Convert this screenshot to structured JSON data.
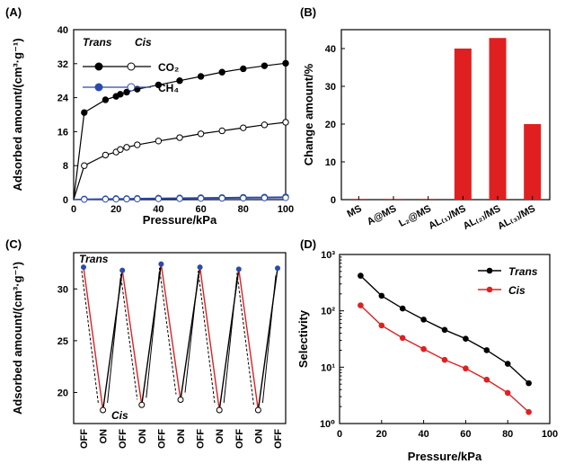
{
  "chart_data": [
    {
      "panel": "(A)",
      "type": "scatter",
      "xlabel": "Pressure/kPa",
      "ylabel": "Adsorbed amount/(cm³·g⁻¹)",
      "xlim": [
        0,
        100
      ],
      "ylim": [
        0,
        40
      ],
      "xticks": [
        0,
        20,
        40,
        60,
        80,
        100
      ],
      "yticks": [
        0,
        8,
        16,
        24,
        32,
        40
      ],
      "legend": {
        "position": "top-left",
        "header_left": "Trans",
        "header_right": "Cis",
        "entries": [
          "CO₂",
          "CH₄"
        ]
      },
      "series": [
        {
          "name": "CO₂ Trans",
          "color": "#000000",
          "marker": "filled",
          "x": [
            0,
            5,
            15,
            20,
            22,
            25,
            30,
            40,
            50,
            60,
            70,
            80,
            90,
            100
          ],
          "y": [
            0,
            20.5,
            23.5,
            24.3,
            24.8,
            25.3,
            26.0,
            27.0,
            28.0,
            29.0,
            30.0,
            30.8,
            31.5,
            32.1
          ]
        },
        {
          "name": "CO₂ Cis",
          "color": "#000000",
          "marker": "open",
          "x": [
            0,
            5,
            15,
            20,
            22,
            25,
            30,
            40,
            50,
            60,
            70,
            80,
            90,
            100
          ],
          "y": [
            0,
            8.0,
            10.5,
            11.2,
            11.8,
            12.3,
            12.9,
            13.8,
            14.6,
            15.5,
            16.2,
            16.9,
            17.6,
            18.2
          ]
        },
        {
          "name": "CH₄ Trans",
          "color": "#2b4ba8",
          "marker": "filled",
          "x": [
            0,
            5,
            15,
            20,
            25,
            30,
            40,
            50,
            60,
            70,
            80,
            90,
            100
          ],
          "y": [
            0,
            0.15,
            0.2,
            0.25,
            0.25,
            0.3,
            0.35,
            0.4,
            0.45,
            0.5,
            0.55,
            0.6,
            0.65
          ]
        },
        {
          "name": "CH₄ Cis",
          "color": "#2b4ba8",
          "marker": "open",
          "x": [
            0,
            5,
            15,
            20,
            25,
            30,
            40,
            50,
            60,
            70,
            80,
            90,
            100
          ],
          "y": [
            0,
            0.05,
            0.1,
            0.12,
            0.14,
            0.16,
            0.2,
            0.24,
            0.28,
            0.32,
            0.36,
            0.4,
            0.44
          ]
        }
      ]
    },
    {
      "panel": "(B)",
      "type": "bar",
      "ylabel": "Change amount/%",
      "ylim": [
        0,
        45
      ],
      "yticks": [
        0,
        10,
        20,
        30,
        40
      ],
      "categories": [
        "MS",
        "A@MS",
        "L₂@MS",
        "AL₍₁₎/MS",
        "AL₍₂₎/MS",
        "AL₍₃₎/MS"
      ],
      "values": [
        0.2,
        0.2,
        0.2,
        40,
        42.8,
        20
      ],
      "color": "#e02020"
    },
    {
      "panel": "(C)",
      "type": "line",
      "ylabel": "Adsorbed amount/(cm³·g⁻¹)",
      "ylim": [
        17,
        33.5
      ],
      "yticks": [
        20,
        25,
        30
      ],
      "categories": [
        "OFF",
        "ON",
        "OFF",
        "ON",
        "OFF",
        "ON",
        "OFF",
        "ON",
        "OFF",
        "ON",
        "OFF"
      ],
      "annotations": [
        "Trans",
        "Cis"
      ],
      "trans_values": [
        32.1,
        31.8,
        32.4,
        32.1,
        31.9,
        32.0
      ],
      "cis_values": [
        18.3,
        18.8,
        19.3,
        18.3,
        18.3
      ],
      "colors": {
        "trans_marker": "#2b4ba8",
        "cis_marker": "#ffffff",
        "red_line": "#e02020",
        "black_line": "#000000"
      }
    },
    {
      "panel": "(D)",
      "type": "line",
      "xlabel": "Pressure/kPa",
      "ylabel": "Selectivity",
      "xlim": [
        0,
        100
      ],
      "ylim_log10": [
        0,
        3
      ],
      "scale_y": "log",
      "xticks": [
        0,
        20,
        40,
        60,
        80,
        100
      ],
      "ytick_labels": [
        "10⁰",
        "10¹",
        "10²",
        "10³"
      ],
      "legend": {
        "position": "top-right"
      },
      "series": [
        {
          "name": "Trans",
          "color": "#000000",
          "x": [
            10,
            20,
            30,
            40,
            50,
            60,
            70,
            80,
            90
          ],
          "y": [
            420,
            185,
            110,
            70,
            46,
            32,
            20,
            11.5,
            5.2
          ]
        },
        {
          "name": "Cis",
          "color": "#e02020",
          "x": [
            10,
            20,
            30,
            40,
            50,
            60,
            70,
            80,
            90
          ],
          "y": [
            125,
            55,
            33,
            21,
            13.5,
            9.5,
            6.0,
            3.5,
            1.6
          ]
        }
      ]
    }
  ]
}
